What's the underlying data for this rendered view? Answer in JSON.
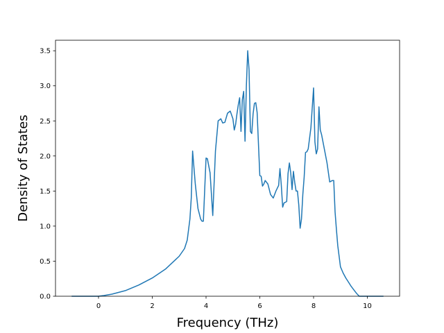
{
  "chart_data": {
    "type": "line",
    "xlabel": "Frequency (THz)",
    "ylabel": "Density of States",
    "xlim": [
      -1.6,
      11.2
    ],
    "ylim": [
      0,
      3.65
    ],
    "xticks": [
      0,
      2,
      4,
      6,
      8,
      10
    ],
    "yticks": [
      0.0,
      0.5,
      1.0,
      1.5,
      2.0,
      2.5,
      3.0,
      3.5
    ],
    "xtick_labels": [
      "0",
      "2",
      "4",
      "6",
      "8",
      "10"
    ],
    "ytick_labels": [
      "0.0",
      "0.5",
      "1.0",
      "1.5",
      "2.0",
      "2.5",
      "3.0",
      "3.5"
    ],
    "grid": false,
    "series": [
      {
        "color": "#1f77b4",
        "x": [
          -1.0,
          0.0,
          0.2,
          0.5,
          1.0,
          1.5,
          2.0,
          2.5,
          3.0,
          3.2,
          3.3,
          3.35,
          3.4,
          3.45,
          3.5,
          3.6,
          3.7,
          3.8,
          3.85,
          3.9,
          4.0,
          4.05,
          4.15,
          4.25,
          4.35,
          4.45,
          4.55,
          4.62,
          4.7,
          4.8,
          4.9,
          5.0,
          5.05,
          5.1,
          5.15,
          5.2,
          5.25,
          5.3,
          5.35,
          5.4,
          5.45,
          5.5,
          5.55,
          5.6,
          5.65,
          5.7,
          5.75,
          5.8,
          5.85,
          5.9,
          6.0,
          6.05,
          6.1,
          6.15,
          6.2,
          6.3,
          6.4,
          6.5,
          6.6,
          6.7,
          6.75,
          6.8,
          6.85,
          6.9,
          7.0,
          7.05,
          7.1,
          7.15,
          7.2,
          7.25,
          7.3,
          7.35,
          7.4,
          7.45,
          7.5,
          7.55,
          7.6,
          7.65,
          7.7,
          7.75,
          7.8,
          7.9,
          8.0,
          8.05,
          8.1,
          8.15,
          8.2,
          8.25,
          8.3,
          8.4,
          8.5,
          8.6,
          8.7,
          8.75,
          8.8,
          8.85,
          8.9,
          9.0,
          9.1,
          9.2,
          9.3,
          9.4,
          9.5,
          9.6,
          9.7,
          9.8,
          10.0,
          10.3,
          10.6
        ],
        "y": [
          0.0,
          0.0,
          0.01,
          0.03,
          0.08,
          0.16,
          0.26,
          0.39,
          0.57,
          0.68,
          0.8,
          0.95,
          1.1,
          1.4,
          2.07,
          1.6,
          1.25,
          1.1,
          1.07,
          1.07,
          1.97,
          1.96,
          1.76,
          1.15,
          2.07,
          2.5,
          2.53,
          2.47,
          2.48,
          2.61,
          2.64,
          2.53,
          2.37,
          2.45,
          2.6,
          2.73,
          2.83,
          2.35,
          2.8,
          2.92,
          2.21,
          3.0,
          3.5,
          3.23,
          2.35,
          2.32,
          2.6,
          2.75,
          2.76,
          2.62,
          1.72,
          1.71,
          1.57,
          1.6,
          1.65,
          1.6,
          1.45,
          1.4,
          1.5,
          1.58,
          1.82,
          1.58,
          1.27,
          1.33,
          1.35,
          1.75,
          1.9,
          1.76,
          1.52,
          1.78,
          1.62,
          1.5,
          1.5,
          1.3,
          0.97,
          1.1,
          1.45,
          1.7,
          2.05,
          2.06,
          2.1,
          2.4,
          2.97,
          2.2,
          2.03,
          2.1,
          2.7,
          2.37,
          2.3,
          2.1,
          1.9,
          1.63,
          1.65,
          1.65,
          1.2,
          0.95,
          0.72,
          0.42,
          0.33,
          0.26,
          0.2,
          0.14,
          0.09,
          0.04,
          0.0,
          0.0,
          0.0,
          0.0,
          0.0
        ]
      }
    ]
  }
}
